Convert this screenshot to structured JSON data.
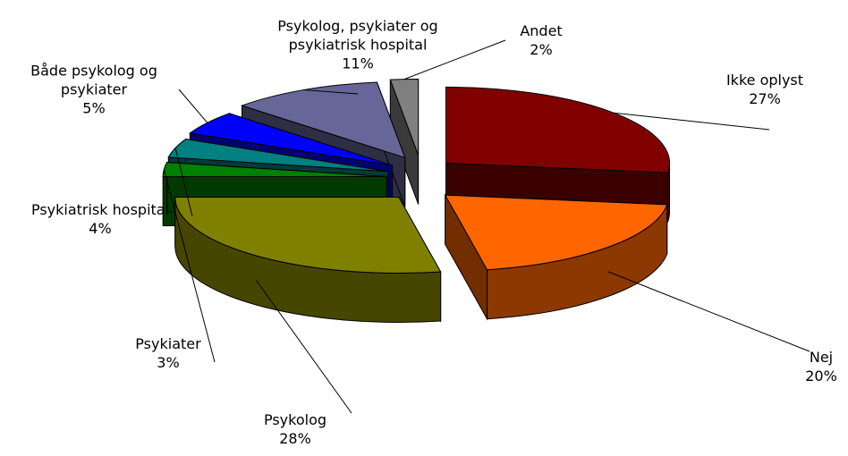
{
  "chart_data": {
    "type": "pie3d",
    "categories": [
      "Ikke oplyst",
      "Nej",
      "Psykolog",
      "Psykiater",
      "Psykiatrisk hospital",
      "Både psykolog og\npsykiater",
      "Psykolog, psykiater og\npsykiatrisk hospital",
      "Andet"
    ],
    "values": [
      27,
      20,
      28,
      3,
      4,
      5,
      11,
      2
    ],
    "value_labels": [
      "27%",
      "20%",
      "28%",
      "3%",
      "4%",
      "5%",
      "11%",
      "2%"
    ],
    "colors": [
      "#800000",
      "#ff6600",
      "#808000",
      "#008000",
      "#008080",
      "#0000ff",
      "#666699",
      "#808080"
    ]
  }
}
